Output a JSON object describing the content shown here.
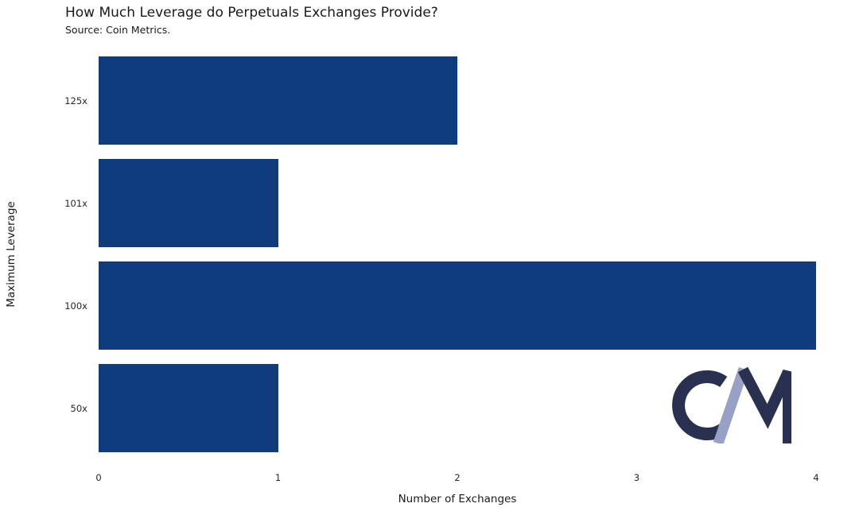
{
  "chart_data": {
    "type": "bar",
    "orientation": "horizontal",
    "title": "How Much Leverage do Perpetuals Exchanges Provide?",
    "subtitle": "Source: Coin Metrics.",
    "categories": [
      "125x",
      "101x",
      "100x",
      "50x"
    ],
    "values": [
      2,
      1,
      4,
      1
    ],
    "xlabel": "Number of Exchanges",
    "ylabel": "Maximum Leverage",
    "xlim": [
      0,
      4
    ],
    "xticks": [
      0,
      1,
      2,
      3,
      4
    ],
    "bar_color": "#0e3c7c",
    "grid": false,
    "legend": null,
    "background": "#ffffff"
  },
  "logo": {
    "name": "Coin Metrics monogram",
    "letters": "CM",
    "dark_color": "#2a3150",
    "light_color": "#97a2c6"
  }
}
